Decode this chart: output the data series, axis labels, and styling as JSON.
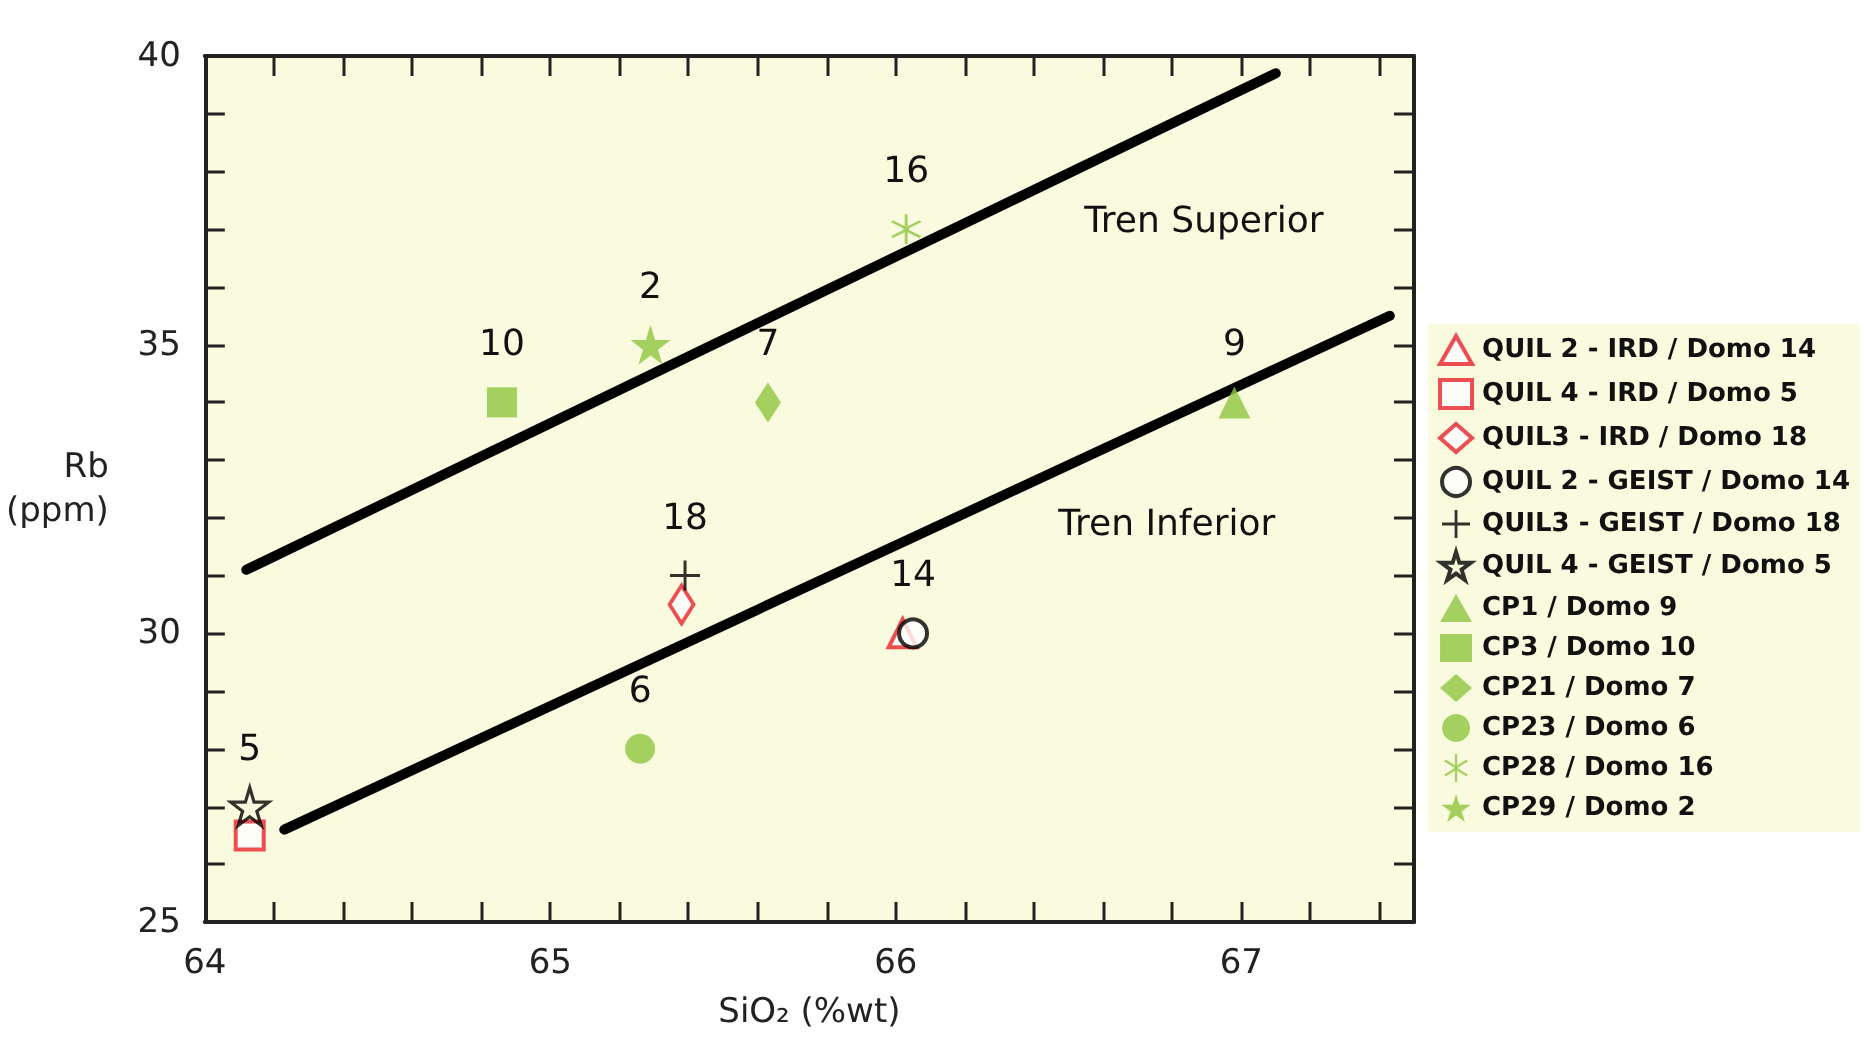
{
  "chart_data": {
    "type": "scatter",
    "xlabel": "SiO₂ (%wt)",
    "ylabel": "Rb\n(ppm)",
    "xlim": [
      64,
      67.5
    ],
    "ylim": [
      25,
      40
    ],
    "xticks": [
      64,
      {
        "value": 64.2,
        "label": null
      },
      {
        "value": 64.4,
        "label": null
      },
      {
        "value": 64.6,
        "label": null
      },
      {
        "value": 64.8,
        "label": null
      },
      65,
      {
        "value": 65.2,
        "label": null
      },
      {
        "value": 65.4,
        "label": null
      },
      {
        "value": 65.6,
        "label": null
      },
      {
        "value": 65.8,
        "label": null
      },
      66,
      {
        "value": 66.2,
        "label": null
      },
      {
        "value": 66.4,
        "label": null
      },
      {
        "value": 66.6,
        "label": null
      },
      {
        "value": 66.8,
        "label": null
      },
      67,
      {
        "value": 67.2,
        "label": null
      },
      {
        "value": 67.4,
        "label": null
      }
    ],
    "yticks": [
      25,
      {
        "value": 26,
        "label": null
      },
      {
        "value": 27,
        "label": null
      },
      {
        "value": 28,
        "label": null
      },
      {
        "value": 29,
        "label": null
      },
      30,
      {
        "value": 31,
        "label": null
      },
      {
        "value": 32,
        "label": null
      },
      {
        "value": 33,
        "label": null
      },
      {
        "value": 34,
        "label": null
      },
      35,
      {
        "value": 36,
        "label": null
      },
      {
        "value": 37,
        "label": null
      },
      {
        "value": 38,
        "label": null
      },
      {
        "value": 39,
        "label": null
      },
      40
    ],
    "grid": false,
    "legend": "right",
    "series": [
      {
        "name": "QUIL 2 - IRD / Domo 14",
        "color": "#e8232a",
        "marker": "triangle-open",
        "x": [
          66.02
        ],
        "values": [
          30
        ]
      },
      {
        "name": "QUIL 4 - IRD / Domo 5",
        "color": "#e8232a",
        "marker": "square-open",
        "x": [
          64.13
        ],
        "values": [
          26.5
        ]
      },
      {
        "name": "QUIL3 - IRD / Domo 18",
        "color": "#e8232a",
        "marker": "diamond-open",
        "x": [
          65.38
        ],
        "values": [
          30.5
        ]
      },
      {
        "name": "QUIL 2 - GEIST / Domo 14",
        "color": "#000000",
        "marker": "circle-open",
        "x": [
          66.05
        ],
        "values": [
          30
        ]
      },
      {
        "name": "QUIL3 - GEIST / Domo 18",
        "color": "#000000",
        "marker": "cross",
        "x": [
          65.39
        ],
        "values": [
          31
        ]
      },
      {
        "name": "QUIL 4 - GEIST / Domo 5",
        "color": "#000000",
        "marker": "star-open",
        "x": [
          64.13
        ],
        "values": [
          27
        ]
      },
      {
        "name": "CP1 / Domo 9",
        "color": "#8dc63f",
        "marker": "triangle",
        "x": [
          66.98
        ],
        "values": [
          34
        ]
      },
      {
        "name": "CP3 / Domo 10",
        "color": "#8dc63f",
        "marker": "square",
        "x": [
          64.86
        ],
        "values": [
          34
        ]
      },
      {
        "name": "CP21 / Domo 7",
        "color": "#8dc63f",
        "marker": "diamond",
        "x": [
          65.63
        ],
        "values": [
          34
        ]
      },
      {
        "name": "CP23 / Domo 6",
        "color": "#8dc63f",
        "marker": "circle",
        "x": [
          65.26
        ],
        "values": [
          28
        ]
      },
      {
        "name": "CP28 / Domo 16",
        "color": "#8dc63f",
        "marker": "asterisk",
        "x": [
          66.03
        ],
        "values": [
          37
        ]
      },
      {
        "name": "CP29 / Domo 2",
        "color": "#8dc63f",
        "marker": "star",
        "x": [
          65.29
        ],
        "values": [
          35
        ]
      },
      {
        "type": "line",
        "color": "#000000",
        "marker": "none",
        "x": [
          64.12,
          67.1
        ],
        "values": [
          31.1,
          39.7
        ]
      },
      {
        "type": "line",
        "color": "#000000",
        "marker": "none",
        "x": [
          64.23,
          67.43
        ],
        "values": [
          26.6,
          35.5
        ]
      }
    ],
    "annotations": [
      "Tren Superior",
      "Tren Inferior",
      {
        "text": "16",
        "x": 66.03,
        "y": 37
      },
      {
        "text": "2",
        "x": 65.29,
        "y": 35
      },
      {
        "text": "10",
        "x": 64.86,
        "y": 34
      },
      {
        "text": "7",
        "x": 65.63,
        "y": 34
      },
      {
        "text": "9",
        "x": 66.98,
        "y": 34
      },
      {
        "text": "18",
        "x": 65.39,
        "y": 31
      },
      {
        "text": "14",
        "x": 66.05,
        "y": 30
      },
      {
        "text": "6",
        "x": 65.26,
        "y": 28
      },
      {
        "text": "5",
        "x": 64.13,
        "y": 27
      }
    ]
  }
}
